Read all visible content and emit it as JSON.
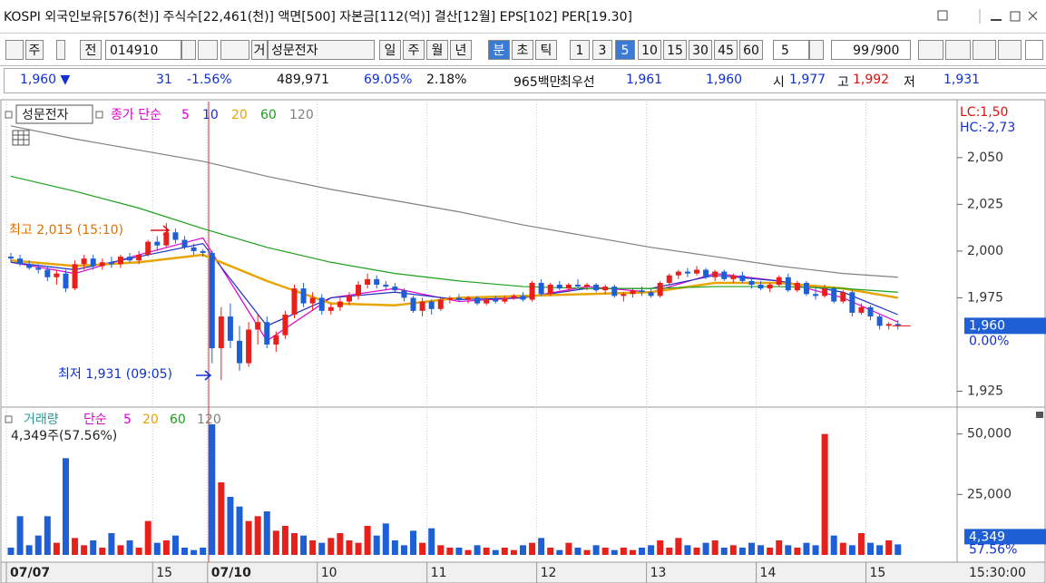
{
  "header": {
    "title": "KOSPI 외국인보유[576(천)] 주식수[22,461(천)] 액면[500] 자본금[112(억)] 결산[12월] EPS[102] PER[19.30]"
  },
  "toolbar": {
    "buttons": [
      "주",
      "전"
    ],
    "code": "014910",
    "name_prefix": "거",
    "name": "성문전자",
    "periods": [
      "일",
      "주",
      "월",
      "년",
      "분",
      "초",
      "틱"
    ],
    "intervals": [
      "1",
      "3",
      "5",
      "10",
      "15",
      "30",
      "45",
      "60"
    ],
    "interval_select": "5",
    "count": "99",
    "count_max": "/900"
  },
  "quote": {
    "price": "1,960 ▼",
    "change": "31",
    "change_rate": "-1.56%",
    "volume": "489,971",
    "volume_rate": "69.05%",
    "turnover": "2.18%",
    "amount": "965백만",
    "best_label": "최우선",
    "ask": "1,961",
    "bid": "1,960",
    "open_label": "시",
    "open": "1,977",
    "high_label": "고",
    "high": "1,992",
    "low_label": "저",
    "low": "1,931"
  },
  "chart_data": [
    {
      "type": "candlestick",
      "name": "성문전자",
      "legend_prefix": "종가 단순",
      "grid": false,
      "lc_label": "LC:1,50",
      "hc_label": "HC:-2,73",
      "last_price_label": "1,960",
      "last_change_label": "0.00%",
      "annotations": [
        {
          "text": "최고 2,015 (15:10)",
          "color": "#e07000"
        },
        {
          "text": "최저 1,931 (09:05)",
          "color": "#1030d0"
        }
      ],
      "ylim": [
        1917,
        2080
      ],
      "yticks": [
        {
          "value": 2050,
          "label": "2,050"
        },
        {
          "value": 2025,
          "label": "2,025"
        },
        {
          "value": 2000,
          "label": "2,000"
        },
        {
          "value": 1975,
          "label": "1,975"
        },
        {
          "value": 1925,
          "label": "1,925"
        }
      ],
      "categories": [
        "07/07",
        null,
        null,
        null,
        null,
        null,
        null,
        null,
        null,
        null,
        null,
        null,
        null,
        null,
        null,
        null,
        "15",
        null,
        null,
        null,
        null,
        null,
        "07/10",
        null,
        null,
        null,
        null,
        null,
        null,
        null,
        null,
        null,
        null,
        null,
        "10",
        null,
        null,
        null,
        null,
        null,
        null,
        null,
        null,
        null,
        null,
        null,
        "11",
        null,
        null,
        null,
        null,
        null,
        null,
        null,
        null,
        null,
        null,
        null,
        "12",
        null,
        null,
        null,
        null,
        null,
        null,
        null,
        null,
        null,
        null,
        null,
        "13",
        null,
        null,
        null,
        null,
        null,
        null,
        null,
        null,
        null,
        null,
        null,
        "14",
        null,
        null,
        null,
        null,
        null,
        null,
        null,
        null,
        null,
        null,
        null,
        "15",
        null,
        null,
        null
      ],
      "time_label": "15:30:00",
      "ohlc": [
        [
          1997,
          1999,
          1994,
          1996
        ],
        [
          1996,
          1998,
          1992,
          1993
        ],
        [
          1993,
          1995,
          1990,
          1991
        ],
        [
          1991,
          1993,
          1988,
          1990
        ],
        [
          1990,
          1992,
          1984,
          1986
        ],
        [
          1986,
          1990,
          1982,
          1988
        ],
        [
          1988,
          1990,
          1978,
          1980
        ],
        [
          1980,
          1995,
          1979,
          1993
        ],
        [
          1993,
          1998,
          1990,
          1996
        ],
        [
          1996,
          1998,
          1990,
          1992
        ],
        [
          1992,
          1996,
          1990,
          1994
        ],
        [
          1994,
          1997,
          1991,
          1993
        ],
        [
          1993,
          1998,
          1991,
          1997
        ],
        [
          1997,
          1999,
          1994,
          1995
        ],
        [
          1995,
          2000,
          1993,
          1998
        ],
        [
          1998,
          2006,
          1997,
          2005
        ],
        [
          2005,
          2008,
          2000,
          2003
        ],
        [
          2003,
          2015,
          2002,
          2010
        ],
        [
          2010,
          2012,
          2004,
          2006
        ],
        [
          2006,
          2008,
          2001,
          2002
        ],
        [
          2002,
          2004,
          1998,
          2000
        ],
        [
          2000,
          2001,
          1997,
          1999
        ],
        [
          1999,
          2000,
          1940,
          1948
        ],
        [
          1948,
          1970,
          1931,
          1965
        ],
        [
          1965,
          1972,
          1948,
          1952
        ],
        [
          1952,
          1960,
          1936,
          1940
        ],
        [
          1940,
          1962,
          1938,
          1958
        ],
        [
          1958,
          1966,
          1950,
          1962
        ],
        [
          1962,
          1965,
          1948,
          1950
        ],
        [
          1950,
          1957,
          1946,
          1955
        ],
        [
          1955,
          1968,
          1953,
          1966
        ],
        [
          1966,
          1982,
          1964,
          1980
        ],
        [
          1980,
          1983,
          1970,
          1972
        ],
        [
          1972,
          1978,
          1968,
          1975
        ],
        [
          1975,
          1977,
          1966,
          1968
        ],
        [
          1968,
          1972,
          1966,
          1970
        ],
        [
          1970,
          1975,
          1968,
          1973
        ],
        [
          1973,
          1978,
          1971,
          1976
        ],
        [
          1976,
          1984,
          1974,
          1982
        ],
        [
          1982,
          1988,
          1980,
          1985
        ],
        [
          1985,
          1987,
          1980,
          1982
        ],
        [
          1982,
          1984,
          1979,
          1981
        ],
        [
          1981,
          1983,
          1978,
          1979
        ],
        [
          1979,
          1980,
          1973,
          1975
        ],
        [
          1975,
          1976,
          1967,
          1968
        ],
        [
          1968,
          1975,
          1965,
          1973
        ],
        [
          1973,
          1974,
          1966,
          1969
        ],
        [
          1969,
          1975,
          1968,
          1974
        ],
        [
          1974,
          1976,
          1972,
          1975
        ],
        [
          1975,
          1977,
          1973,
          1974
        ],
        [
          1974,
          1976,
          1972,
          1975
        ],
        [
          1975,
          1976,
          1971,
          1972
        ],
        [
          1972,
          1975,
          1971,
          1974
        ],
        [
          1974,
          1976,
          1972,
          1973
        ],
        [
          1973,
          1976,
          1972,
          1975
        ],
        [
          1975,
          1977,
          1974,
          1976
        ],
        [
          1976,
          1978,
          1973,
          1974
        ],
        [
          1974,
          1984,
          1973,
          1983
        ],
        [
          1983,
          1985,
          1976,
          1977
        ],
        [
          1977,
          1983,
          1976,
          1982
        ],
        [
          1982,
          1984,
          1979,
          1980
        ],
        [
          1980,
          1983,
          1978,
          1982
        ],
        [
          1982,
          1985,
          1980,
          1981
        ],
        [
          1981,
          1983,
          1979,
          1982
        ],
        [
          1982,
          1983,
          1978,
          1979
        ],
        [
          1979,
          1982,
          1977,
          1981
        ],
        [
          1981,
          1982,
          1975,
          1976
        ],
        [
          1976,
          1978,
          1973,
          1977
        ],
        [
          1977,
          1980,
          1975,
          1979
        ],
        [
          1979,
          1981,
          1976,
          1978
        ],
        [
          1978,
          1980,
          1975,
          1976
        ],
        [
          1976,
          1984,
          1975,
          1983
        ],
        [
          1983,
          1988,
          1982,
          1987
        ],
        [
          1987,
          1990,
          1985,
          1989
        ],
        [
          1989,
          1991,
          1986,
          1988
        ],
        [
          1988,
          1992,
          1987,
          1990
        ],
        [
          1990,
          1991,
          1985,
          1986
        ],
        [
          1986,
          1990,
          1984,
          1989
        ],
        [
          1989,
          1990,
          1984,
          1985
        ],
        [
          1985,
          1988,
          1983,
          1987
        ],
        [
          1987,
          1989,
          1983,
          1984
        ],
        [
          1984,
          1986,
          1980,
          1982
        ],
        [
          1982,
          1984,
          1979,
          1980
        ],
        [
          1980,
          1983,
          1978,
          1982
        ],
        [
          1982,
          1987,
          1981,
          1986
        ],
        [
          1986,
          1988,
          1978,
          1979
        ],
        [
          1979,
          1984,
          1978,
          1983
        ],
        [
          1983,
          1984,
          1976,
          1977
        ],
        [
          1977,
          1981,
          1974,
          1976
        ],
        [
          1976,
          1982,
          1975,
          1980
        ],
        [
          1980,
          1981,
          1972,
          1973
        ],
        [
          1973,
          1979,
          1972,
          1978
        ],
        [
          1978,
          1979,
          1965,
          1967
        ],
        [
          1967,
          1972,
          1966,
          1970
        ],
        [
          1970,
          1971,
          1963,
          1965
        ],
        [
          1965,
          1966,
          1958,
          1960
        ],
        [
          1960,
          1962,
          1958,
          1961
        ],
        [
          1961,
          1963,
          1958,
          1960
        ]
      ],
      "up_color": "#e8201c",
      "down_color": "#1f5fd6",
      "series": [
        {
          "name": "5",
          "color": "#e000d0",
          "x": [
            0,
            7,
            14,
            21,
            28,
            35,
            42,
            49,
            56,
            63,
            70,
            77,
            84,
            91,
            97
          ],
          "values": [
            1994,
            1988,
            1998,
            2007,
            1952,
            1975,
            1980,
            1973,
            1975,
            1981,
            1978,
            1988,
            1984,
            1975,
            1962
          ]
        },
        {
          "name": "10",
          "color": "#2030c0",
          "x": [
            0,
            7,
            14,
            21,
            28,
            35,
            42,
            49,
            56,
            63,
            70,
            77,
            84,
            91,
            97
          ],
          "values": [
            1994,
            1990,
            1997,
            2004,
            1960,
            1975,
            1978,
            1974,
            1975,
            1980,
            1980,
            1987,
            1984,
            1978,
            1966
          ]
        },
        {
          "name": "20",
          "color": "#e8a400",
          "x": [
            0,
            7,
            14,
            21,
            28,
            35,
            42,
            49,
            56,
            63,
            70,
            77,
            84,
            91,
            97
          ],
          "values": [
            1995,
            1992,
            1994,
            1998,
            1984,
            1972,
            1971,
            1975,
            1976,
            1977,
            1978,
            1983,
            1983,
            1980,
            1975
          ]
        },
        {
          "name": "60",
          "color": "#1aa01a",
          "x": [
            0,
            7,
            14,
            21,
            28,
            35,
            42,
            49,
            56,
            63,
            70,
            77,
            84,
            91,
            97
          ],
          "values": [
            2040,
            2032,
            2023,
            2012,
            2002,
            1994,
            1988,
            1984,
            1981,
            1980,
            1980,
            1981,
            1981,
            1980,
            1978
          ]
        },
        {
          "name": "120",
          "color": "#808080",
          "x": [
            0,
            7,
            14,
            21,
            28,
            35,
            42,
            49,
            56,
            63,
            70,
            77,
            84,
            91,
            97
          ],
          "values": [
            2067,
            2060,
            2054,
            2048,
            2040,
            2033,
            2027,
            2021,
            2014,
            2008,
            2002,
            1997,
            1992,
            1988,
            1986
          ]
        }
      ]
    },
    {
      "type": "bar",
      "name": "거래량",
      "legend_prefix": "단순",
      "info_label": "4,349주(57.56%)",
      "last_value_label": "4,349",
      "last_rate_label": "57.56%",
      "legend": [
        {
          "name": "5",
          "color": "#e000d0"
        },
        {
          "name": "20",
          "color": "#e8a400"
        },
        {
          "name": "60",
          "color": "#1aa01a"
        },
        {
          "name": "120",
          "color": "#808080"
        }
      ],
      "ylim": [
        0,
        60000
      ],
      "yticks": [
        {
          "value": 50000,
          "label": "50,000"
        },
        {
          "value": 25000,
          "label": "25,000"
        }
      ],
      "values": [
        3000,
        16000,
        4000,
        8000,
        16000,
        5000,
        40000,
        7000,
        4000,
        6000,
        3000,
        9000,
        4000,
        6000,
        3000,
        14000,
        5000,
        6000,
        8000,
        3000,
        2000,
        3000,
        54000,
        30000,
        24000,
        20000,
        14000,
        16000,
        18000,
        10000,
        12000,
        9000,
        8000,
        6000,
        5000,
        7000,
        9000,
        6000,
        5000,
        12000,
        8000,
        13000,
        6000,
        4000,
        10000,
        5000,
        11000,
        4000,
        3000,
        3000,
        2000,
        4000,
        3000,
        2000,
        3000,
        2000,
        4000,
        5000,
        7000,
        3000,
        2000,
        5000,
        3000,
        2000,
        4000,
        3000,
        2000,
        3000,
        2000,
        3000,
        4000,
        6000,
        3000,
        7000,
        4000,
        3000,
        5000,
        6000,
        3000,
        4000,
        3000,
        5000,
        4000,
        3000,
        6000,
        4000,
        3000,
        5000,
        4000,
        50000,
        8000,
        5000,
        4000,
        9000,
        5000,
        4000,
        6000,
        4349
      ]
    }
  ]
}
